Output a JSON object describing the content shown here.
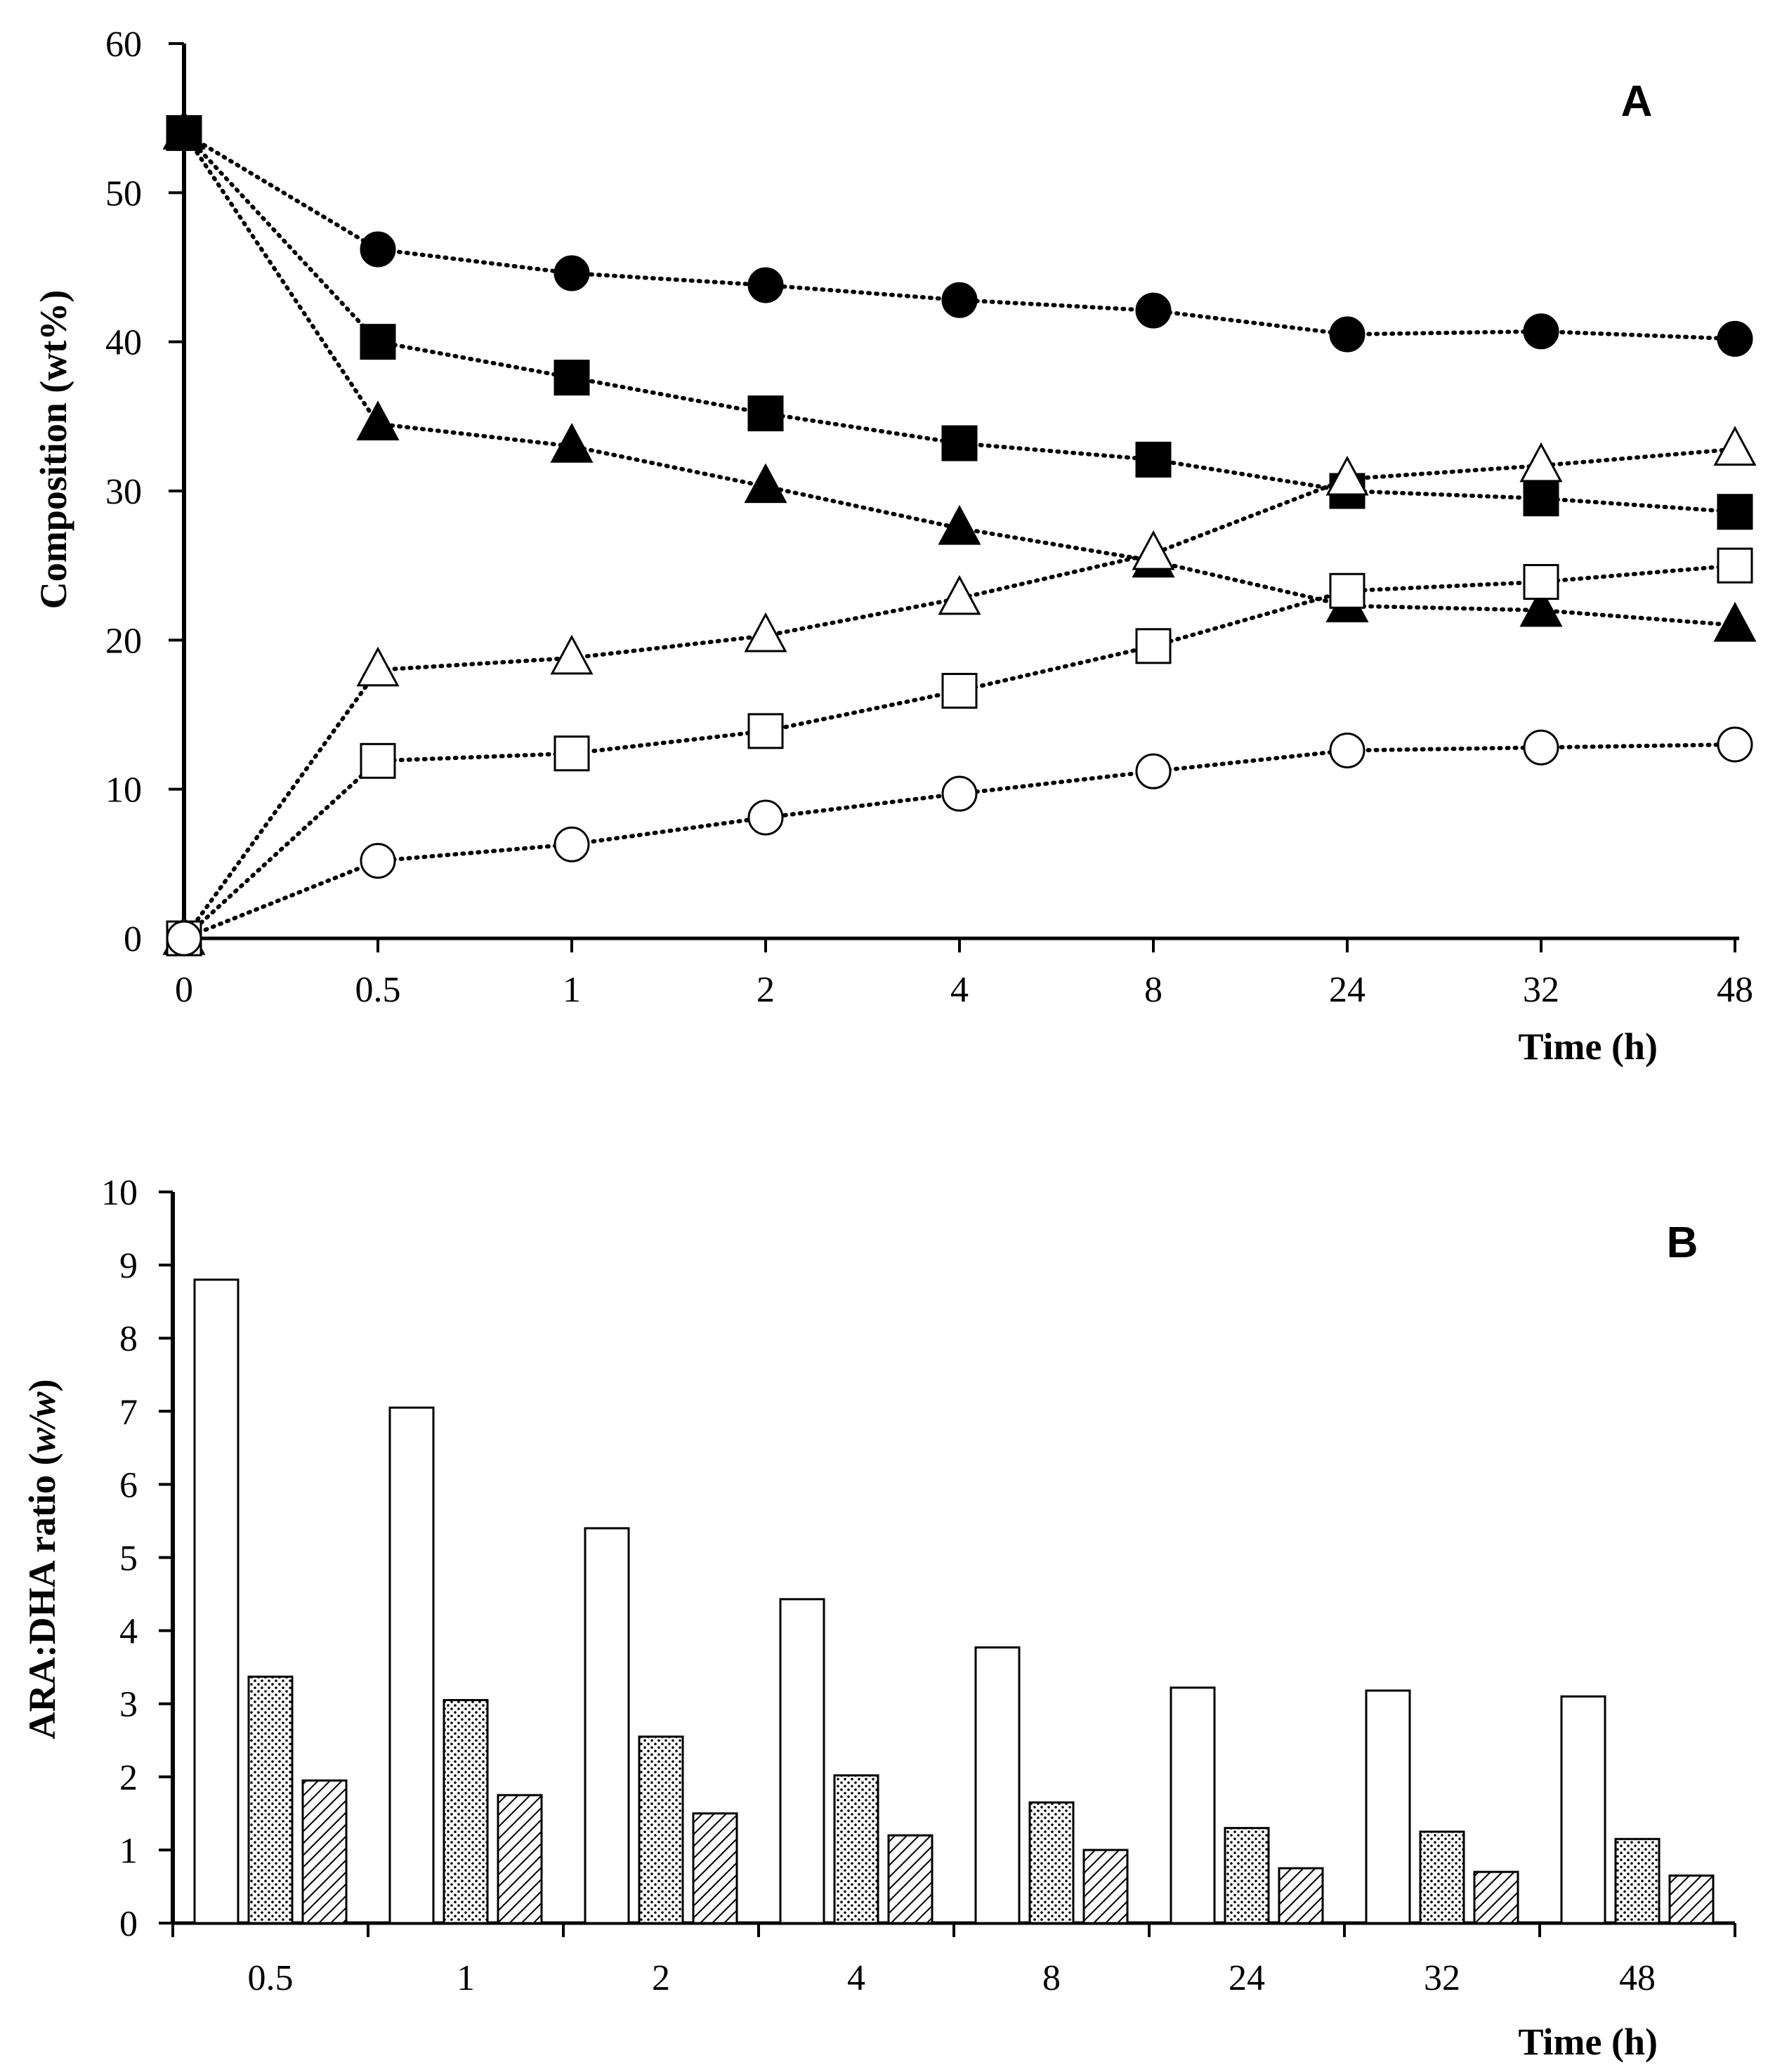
{
  "chart_data": [
    {
      "type": "line",
      "panel_label": "A",
      "xlabel": "Time (h)",
      "ylabel": "Composition (wt%)",
      "categories": [
        "0",
        "0.5",
        "1",
        "2",
        "4",
        "8",
        "24",
        "32",
        "48"
      ],
      "ylim": [
        0,
        60
      ],
      "yticks": [
        "0",
        "10",
        "20",
        "30",
        "40",
        "50",
        "60"
      ],
      "line_style": "dotted",
      "series": [
        {
          "name": "filled-circle",
          "marker": "circle",
          "fill": "#000000",
          "values": [
            54,
            46.2,
            44.6,
            43.8,
            42.8,
            42.1,
            40.5,
            40.7,
            40.2
          ]
        },
        {
          "name": "filled-square",
          "marker": "square",
          "fill": "#000000",
          "values": [
            54,
            40,
            37.6,
            35.2,
            33.2,
            32.1,
            30,
            29.5,
            28.6
          ]
        },
        {
          "name": "filled-triangle",
          "marker": "triangle",
          "fill": "#000000",
          "values": [
            54,
            34.5,
            33,
            30.3,
            27.5,
            25.3,
            22.3,
            22,
            21
          ]
        },
        {
          "name": "open-triangle",
          "marker": "triangle",
          "fill": "#ffffff",
          "values": [
            0,
            18,
            18.8,
            20.3,
            22.8,
            25.8,
            30.8,
            31.7,
            32.8
          ]
        },
        {
          "name": "open-square",
          "marker": "square",
          "fill": "#ffffff",
          "values": [
            0,
            11.9,
            12.4,
            13.9,
            16.6,
            19.6,
            23.3,
            23.9,
            25
          ]
        },
        {
          "name": "open-circle",
          "marker": "circle",
          "fill": "#ffffff",
          "values": [
            0,
            5.2,
            6.3,
            8.1,
            9.7,
            11.2,
            12.6,
            12.8,
            13
          ]
        }
      ]
    },
    {
      "type": "bar",
      "panel_label": "B",
      "xlabel": "Time (h)",
      "ylabel_main": "ARA:DHA ratio (",
      "ylabel_italic": "w/w",
      "ylabel_close": ")",
      "categories": [
        "0.5",
        "1",
        "2",
        "4",
        "8",
        "24",
        "32",
        "48"
      ],
      "ylim": [
        0,
        10
      ],
      "yticks": [
        "0",
        "1",
        "2",
        "3",
        "4",
        "5",
        "6",
        "7",
        "8",
        "9",
        "10"
      ],
      "series": [
        {
          "name": "white",
          "pattern": "none",
          "values": [
            8.8,
            7.05,
            5.4,
            4.43,
            3.77,
            3.22,
            3.18,
            3.1
          ]
        },
        {
          "name": "dotted",
          "pattern": "dots",
          "values": [
            3.37,
            3.05,
            2.55,
            2.02,
            1.65,
            1.3,
            1.25,
            1.15
          ]
        },
        {
          "name": "hatched",
          "pattern": "diagonal",
          "values": [
            1.95,
            1.75,
            1.5,
            1.2,
            1.0,
            0.75,
            0.7,
            0.65
          ]
        }
      ]
    }
  ]
}
